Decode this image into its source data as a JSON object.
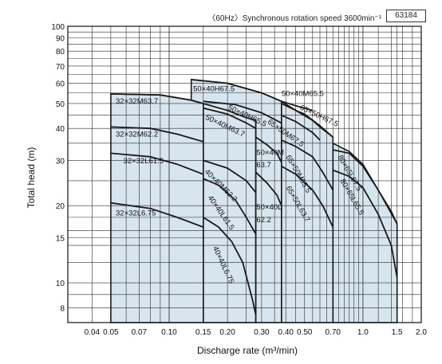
{
  "header": {
    "condition": "〈60Hz〉Synchronous rotation speed 3600min⁻¹",
    "code": "63184"
  },
  "chart_data": {
    "type": "area",
    "title": "",
    "xlabel": "Discharge rate (m³/min)",
    "ylabel": "Total head (m)",
    "xscale": "log",
    "yscale": "log",
    "xlim": [
      0.03,
      2.0
    ],
    "ylim": [
      7,
      100
    ],
    "grid": true,
    "x_ticks": [
      {
        "v": 0.04,
        "label": "0.04"
      },
      {
        "v": 0.05,
        "label": "0.05"
      },
      {
        "v": 0.07,
        "label": "0.07"
      },
      {
        "v": 0.1,
        "label": "0.10"
      },
      {
        "v": 0.15,
        "label": "0.15"
      },
      {
        "v": 0.2,
        "label": "0.20"
      },
      {
        "v": 0.3,
        "label": "0.30"
      },
      {
        "v": 0.4,
        "label": "0.40"
      },
      {
        "v": 0.5,
        "label": "0.50"
      },
      {
        "v": 0.7,
        "label": "0.70"
      },
      {
        "v": 1.0,
        "label": "1.0"
      },
      {
        "v": 1.5,
        "label": "1.5"
      },
      {
        "v": 2.0,
        "label": "2.0"
      }
    ],
    "y_ticks": [
      {
        "v": 8,
        "label": "8"
      },
      {
        "v": 10,
        "label": "10"
      },
      {
        "v": 15,
        "label": "15"
      },
      {
        "v": 20,
        "label": "20"
      },
      {
        "v": 30,
        "label": "30"
      },
      {
        "v": 40,
        "label": "40"
      },
      {
        "v": 50,
        "label": "50"
      },
      {
        "v": 60,
        "label": "60"
      },
      {
        "v": 70,
        "label": "70"
      },
      {
        "v": 80,
        "label": "80"
      },
      {
        "v": 90,
        "label": "90"
      },
      {
        "v": 100,
        "label": "100"
      }
    ],
    "regions": [
      {
        "name": "32×32",
        "outline": [
          [
            0.05,
            7
          ],
          [
            0.05,
            54.5
          ],
          [
            0.09,
            54
          ],
          [
            0.13,
            51.5
          ],
          [
            0.15,
            50
          ],
          [
            0.15,
            7
          ]
        ]
      },
      {
        "name": "40×40",
        "outline": [
          [
            0.15,
            7
          ],
          [
            0.15,
            50
          ],
          [
            0.2,
            47
          ],
          [
            0.25,
            44
          ],
          [
            0.28,
            43
          ],
          [
            0.28,
            7
          ]
        ]
      },
      {
        "name": "50×40",
        "outline": [
          [
            0.13,
            52
          ],
          [
            0.13,
            62
          ],
          [
            0.2,
            60
          ],
          [
            0.3,
            55
          ],
          [
            0.38,
            51
          ],
          [
            0.38,
            7
          ],
          [
            0.28,
            7
          ],
          [
            0.28,
            43
          ],
          [
            0.25,
            44
          ],
          [
            0.2,
            47
          ],
          [
            0.15,
            50
          ],
          [
            0.13,
            51.5
          ]
        ]
      },
      {
        "name": "65×50",
        "outline": [
          [
            0.38,
            7
          ],
          [
            0.38,
            51
          ],
          [
            0.45,
            47
          ],
          [
            0.5,
            45.5
          ],
          [
            0.6,
            41
          ],
          [
            0.7,
            37
          ],
          [
            0.7,
            7
          ]
        ]
      },
      {
        "name": "80×65",
        "outline": [
          [
            0.7,
            7
          ],
          [
            0.7,
            35
          ],
          [
            0.85,
            32.5
          ],
          [
            1.0,
            29
          ],
          [
            1.2,
            23
          ],
          [
            1.4,
            19
          ],
          [
            1.5,
            17
          ],
          [
            1.5,
            7
          ]
        ]
      }
    ],
    "series": [
      {
        "name": "32×32M63.7",
        "x": [
          0.05,
          0.09,
          0.13,
          0.15
        ],
        "y": [
          54.5,
          54,
          51.5,
          50
        ]
      },
      {
        "name": "32×32M62.2",
        "x": [
          0.05,
          0.08,
          0.11,
          0.15
        ],
        "y": [
          40.5,
          40,
          38,
          35.5
        ]
      },
      {
        "name": "32×32L61.5",
        "x": [
          0.05,
          0.08,
          0.11,
          0.15
        ],
        "y": [
          32,
          31,
          29,
          26.5
        ]
      },
      {
        "name": "32×32L6.75",
        "x": [
          0.05,
          0.08,
          0.11,
          0.15
        ],
        "y": [
          20.5,
          19.5,
          18,
          16.5
        ]
      },
      {
        "name": "40×40M63.7",
        "x": [
          0.15,
          0.2,
          0.25,
          0.28
        ],
        "y": [
          48,
          45.5,
          42,
          40
        ]
      },
      {
        "name": "40×40M62.2",
        "x": [
          0.15,
          0.2,
          0.25,
          0.28
        ],
        "y": [
          30,
          28,
          25,
          22.5
        ]
      },
      {
        "name": "40×40L61.5",
        "x": [
          0.15,
          0.18,
          0.22,
          0.25,
          0.28
        ],
        "y": [
          25.5,
          24,
          21,
          18,
          15.5
        ]
      },
      {
        "name": "40×40L6.75",
        "x": [
          0.15,
          0.18,
          0.21,
          0.24,
          0.27,
          0.28
        ],
        "y": [
          18,
          16.5,
          14.5,
          12,
          8.5,
          7.5
        ]
      },
      {
        "name": "50×40H67.5",
        "x": [
          0.13,
          0.2,
          0.3,
          0.38
        ],
        "y": [
          62,
          60,
          55,
          51
        ]
      },
      {
        "name": "50×40H65.5",
        "x": [
          0.15,
          0.22,
          0.3,
          0.38
        ],
        "y": [
          51,
          49.5,
          46,
          42
        ]
      },
      {
        "name": "50×40M63.7",
        "x": [
          0.28,
          0.32,
          0.36,
          0.38
        ],
        "y": [
          37,
          34.5,
          32,
          29.5
        ]
      },
      {
        "name": "50×40L62.2",
        "x": [
          0.28,
          0.32,
          0.36,
          0.38
        ],
        "y": [
          27,
          24.5,
          22,
          20
        ]
      },
      {
        "name": "50×40M65.5",
        "x": [
          0.38,
          0.45,
          0.55
        ],
        "y": [
          51,
          49,
          47
        ]
      },
      {
        "name": "65×50H67.5",
        "x": [
          0.38,
          0.45,
          0.55,
          0.6,
          0.7
        ],
        "y": [
          50,
          47,
          43,
          40.5,
          37
        ]
      },
      {
        "name": "65×50M67.5",
        "x": [
          0.38,
          0.45,
          0.55,
          0.6
        ],
        "y": [
          45,
          42.5,
          38.5,
          36
        ]
      },
      {
        "name": "65×50M65.5",
        "x": [
          0.38,
          0.45,
          0.55,
          0.62,
          0.7
        ],
        "y": [
          36,
          34,
          31,
          27,
          23
        ]
      },
      {
        "name": "65×50L63.7",
        "x": [
          0.38,
          0.45,
          0.55,
          0.62,
          0.7
        ],
        "y": [
          28.5,
          26.5,
          23,
          20,
          16.5
        ]
      },
      {
        "name": "80×65L67.5",
        "x": [
          0.7,
          0.85,
          1.0,
          1.2,
          1.5
        ],
        "y": [
          33,
          32,
          28.5,
          23,
          17
        ]
      },
      {
        "name": "80×65L65.5",
        "x": [
          0.7,
          0.85,
          1.0,
          1.2,
          1.4,
          1.5
        ],
        "y": [
          27.5,
          26,
          23.5,
          18.5,
          14,
          10.5
        ]
      }
    ],
    "labels": [
      {
        "text": "32×32M63.7",
        "x": 0.053,
        "y": 50,
        "angle": 0
      },
      {
        "text": "32×32M62.2",
        "x": 0.053,
        "y": 37.2,
        "angle": 0
      },
      {
        "text": "32×32L61.5",
        "x": 0.058,
        "y": 29.2,
        "angle": 0
      },
      {
        "text": "32×32L6.75",
        "x": 0.053,
        "y": 18.3,
        "angle": 0
      },
      {
        "text": "50×40H67.5",
        "x": 0.133,
        "y": 55.8,
        "angle": 0
      },
      {
        "text": "50×40M63.7",
        "x": 0.153,
        "y": 43.5,
        "angle": 25
      },
      {
        "text": "50×40H65.5",
        "x": 0.2,
        "y": 47.5,
        "angle": 25
      },
      {
        "text": "40×40M62.2",
        "x": 0.152,
        "y": 27,
        "angle": 45
      },
      {
        "text": "40×40L61.5",
        "x": 0.158,
        "y": 21.5,
        "angle": 55
      },
      {
        "text": "40×40L6.75",
        "x": 0.168,
        "y": 13.7,
        "angle": 65
      },
      {
        "text": "50×40M",
        "x": 0.282,
        "y": 31.5,
        "angle": 0
      },
      {
        "text": "63.7",
        "x": 0.282,
        "y": 28.2,
        "angle": 0
      },
      {
        "text": "50×40L",
        "x": 0.282,
        "y": 19.3,
        "angle": 0
      },
      {
        "text": "62.2",
        "x": 0.282,
        "y": 17.2,
        "angle": 0
      },
      {
        "text": "50×40M65.5",
        "x": 0.38,
        "y": 53.5,
        "angle": 0
      },
      {
        "text": "65×50H67.5",
        "x": 0.47,
        "y": 47.5,
        "angle": 25
      },
      {
        "text": "65×50M67.5",
        "x": 0.32,
        "y": 42,
        "angle": 35
      },
      {
        "text": "65×50M65.5",
        "x": 0.4,
        "y": 31,
        "angle": 60
      },
      {
        "text": "65×50L63.7",
        "x": 0.4,
        "y": 23.5,
        "angle": 60
      },
      {
        "text": "80×65L67.5",
        "x": 0.74,
        "y": 31,
        "angle": 60
      },
      {
        "text": "80×65L65.5",
        "x": 0.76,
        "y": 25,
        "angle": 60
      }
    ],
    "colors": {
      "fill": "#d6e5ee",
      "curve": "#1a1a1a",
      "grid": "#2a2a2a"
    }
  }
}
